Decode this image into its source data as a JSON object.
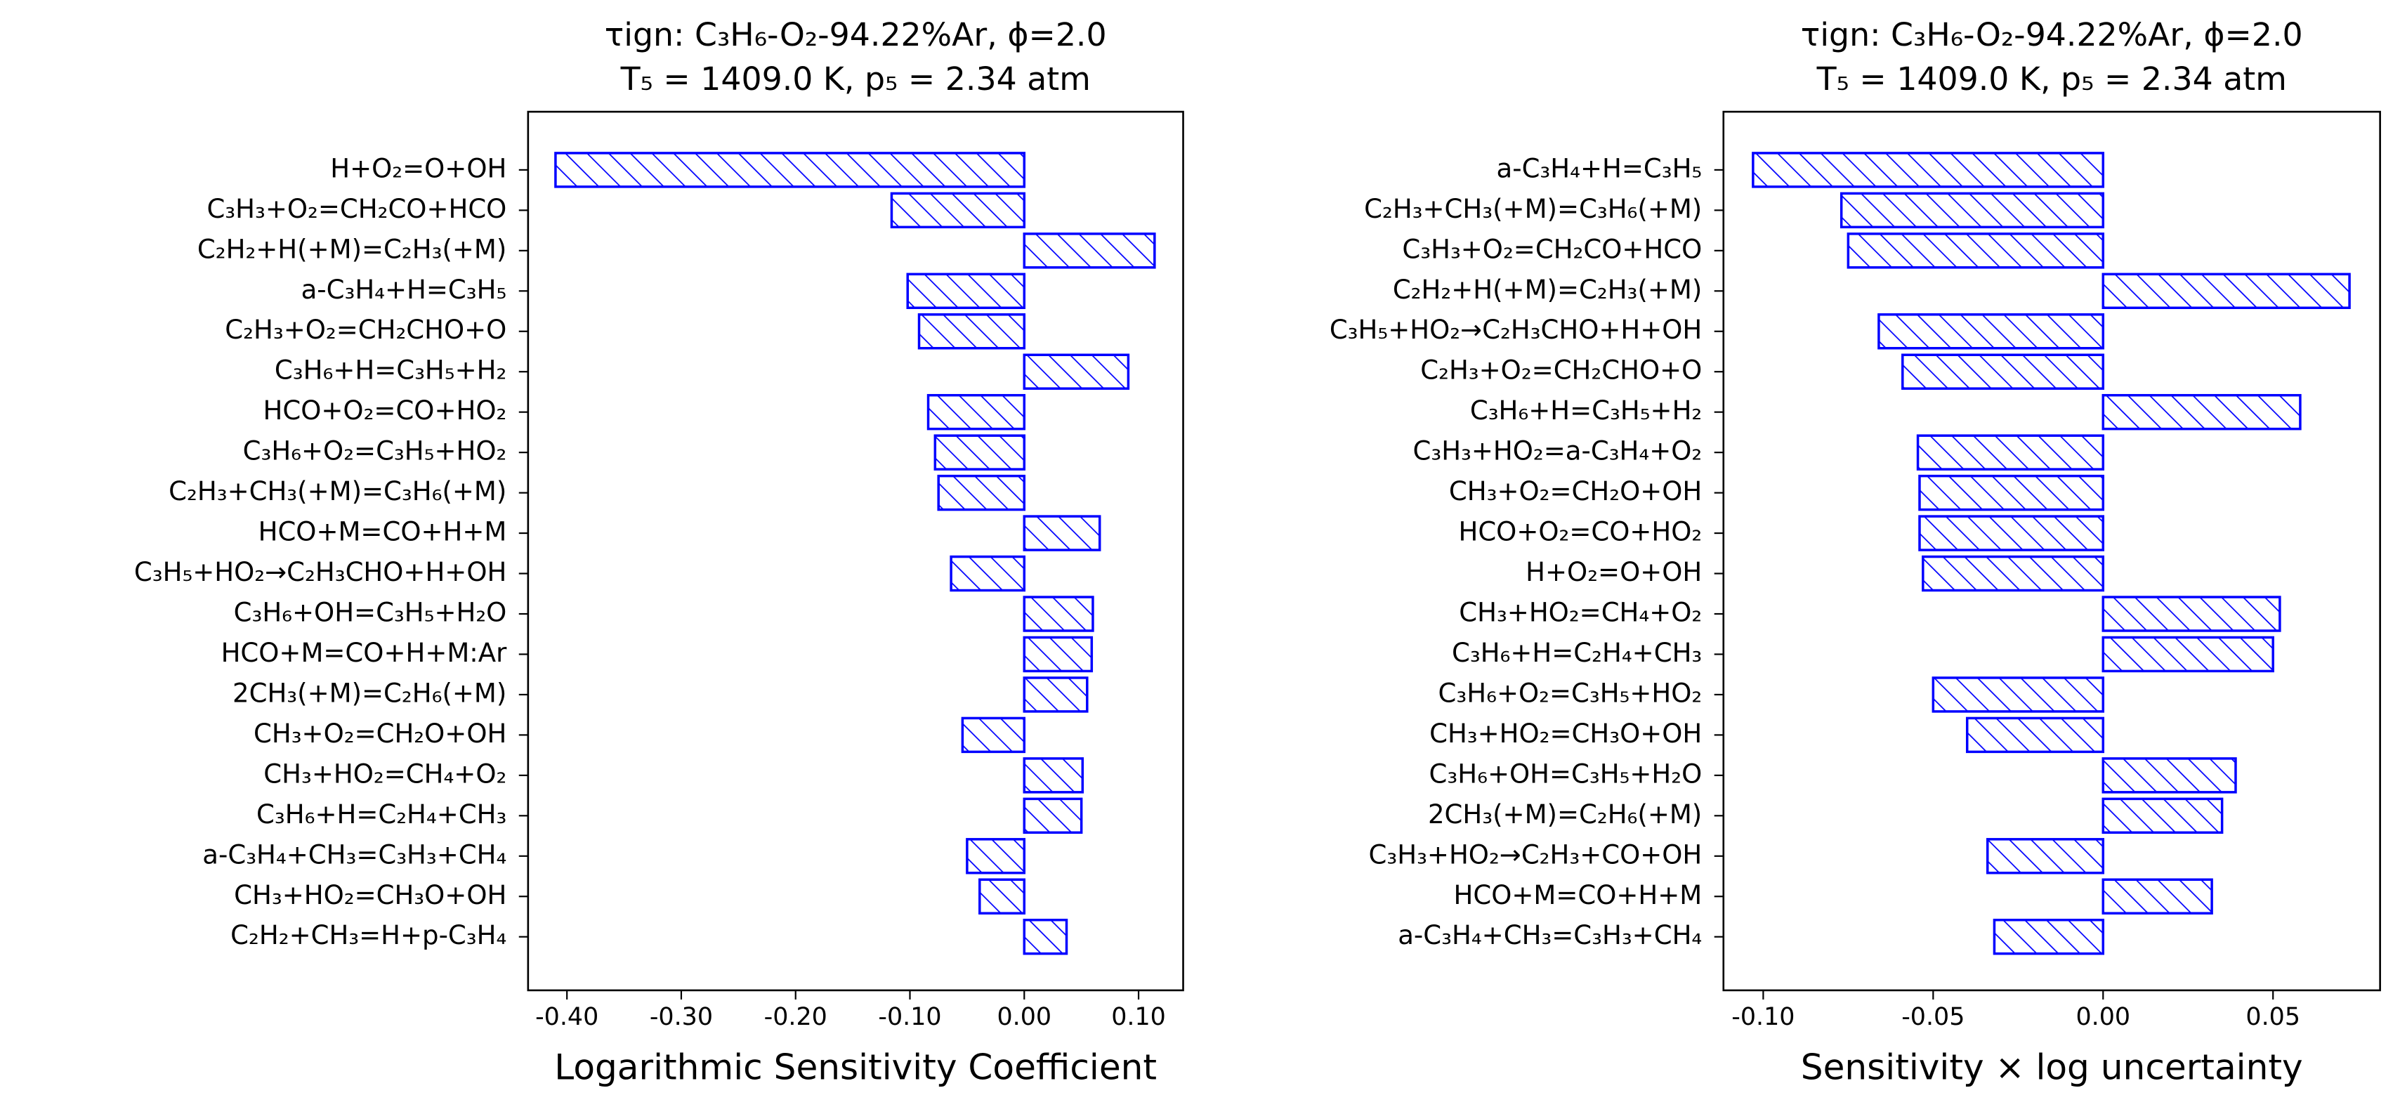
{
  "chart_data": [
    {
      "type": "barh",
      "title": "τign: C₃H₆-O₂-94.22%Ar, ϕ=2.0",
      "subtitle": "T₅ = 1409.0 K, p₅ = 2.34 atm",
      "x_label": "Logarithmic Sensitivity Coefficient",
      "color": "#0000ff",
      "categories": [
        "H+O₂=O+OH",
        "C₃H₃+O₂=CH₂CO+HCO",
        "C₂H₂+H(+M)=C₂H₃(+M)",
        "a-C₃H₄+H=C₃H₅",
        "C₂H₃+O₂=CH₂CHO+O",
        "C₃H₆+H=C₃H₅+H₂",
        "HCO+O₂=CO+HO₂",
        "C₃H₆+O₂=C₃H₅+HO₂",
        "C₂H₃+CH₃(+M)=C₃H₆(+M)",
        "HCO+M=CO+H+M",
        "C₃H₅+HO₂→C₂H₃CHO+H+OH",
        "C₃H₆+OH=C₃H₅+H₂O",
        "HCO+M=CO+H+M:Ar",
        "2CH₃(+M)=C₂H₆(+M)",
        "CH₃+O₂=CH₂O+OH",
        "CH₃+HO₂=CH₄+O₂",
        "C₃H₆+H=C₂H₄+CH₃",
        "a-C₃H₄+CH₃=C₃H₃+CH₄",
        "CH₃+HO₂=CH₃O+OH",
        "C₂H₂+CH₃=H+p-C₃H₄"
      ],
      "values": [
        -0.41,
        -0.116,
        0.114,
        -0.102,
        -0.092,
        0.091,
        -0.084,
        -0.078,
        -0.075,
        0.066,
        -0.064,
        0.06,
        0.059,
        0.055,
        -0.054,
        0.051,
        0.05,
        -0.05,
        -0.039,
        0.037
      ],
      "xlim": [
        -0.434,
        0.139
      ],
      "xticks": [
        {
          "value": -0.4,
          "label": "-0.40"
        },
        {
          "value": -0.3,
          "label": "-0.30"
        },
        {
          "value": -0.2,
          "label": "-0.20"
        },
        {
          "value": -0.1,
          "label": "-0.10"
        },
        {
          "value": 0,
          "label": "0.00"
        },
        {
          "value": 0.1,
          "label": "0.10"
        }
      ]
    },
    {
      "type": "barh",
      "title": "τign: C₃H₆-O₂-94.22%Ar, ϕ=2.0",
      "subtitle": "T₅ = 1409.0 K, p₅ = 2.34 atm",
      "x_label": "Sensitivity × log uncertainty",
      "color": "#0000ff",
      "categories": [
        "a-C₃H₄+H=C₃H₅",
        "C₂H₃+CH₃(+M)=C₃H₆(+M)",
        "C₃H₃+O₂=CH₂CO+HCO",
        "C₂H₂+H(+M)=C₂H₃(+M)",
        "C₃H₅+HO₂→C₂H₃CHO+H+OH",
        "C₂H₃+O₂=CH₂CHO+O",
        "C₃H₆+H=C₃H₅+H₂",
        "C₃H₃+HO₂=a-C₃H₄+O₂",
        "CH₃+O₂=CH₂O+OH",
        "HCO+O₂=CO+HO₂",
        "H+O₂=O+OH",
        "CH₃+HO₂=CH₄+O₂",
        "C₃H₆+H=C₂H₄+CH₃",
        "C₃H₆+O₂=C₃H₅+HO₂",
        "CH₃+HO₂=CH₃O+OH",
        "C₃H₆+OH=C₃H₅+H₂O",
        "2CH₃(+M)=C₂H₆(+M)",
        "C₃H₃+HO₂→C₂H₃+CO+OH",
        "HCO+M=CO+H+M",
        "a-C₃H₄+CH₃=C₃H₃+CH₄"
      ],
      "values": [
        -0.103,
        -0.077,
        -0.075,
        0.0725,
        -0.066,
        -0.059,
        0.058,
        -0.0545,
        -0.054,
        -0.054,
        -0.053,
        0.052,
        0.05,
        -0.05,
        -0.04,
        0.039,
        0.035,
        -0.034,
        0.032,
        -0.032
      ],
      "xlim": [
        -0.1117,
        0.0815
      ],
      "xticks": [
        {
          "value": -0.1,
          "label": "-0.10"
        },
        {
          "value": -0.05,
          "label": "-0.05"
        },
        {
          "value": 0,
          "label": "0.00"
        },
        {
          "value": 0.05,
          "label": "0.05"
        }
      ]
    }
  ]
}
